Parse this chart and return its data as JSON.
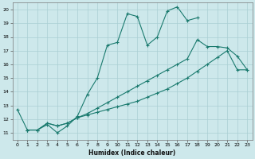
{
  "xlabel": "Humidex (Indice chaleur)",
  "ylabel": "",
  "bg_color": "#cde8eb",
  "line_color": "#1a7a6e",
  "grid_color": "#aacfd4",
  "xlim": [
    -0.5,
    23.5
  ],
  "ylim": [
    10.5,
    20.5
  ],
  "xticks": [
    0,
    1,
    2,
    3,
    4,
    5,
    6,
    7,
    8,
    9,
    10,
    11,
    12,
    13,
    14,
    15,
    16,
    17,
    18,
    19,
    20,
    21,
    22,
    23
  ],
  "yticks": [
    11,
    12,
    13,
    14,
    15,
    16,
    17,
    18,
    19,
    20
  ],
  "line1_x": [
    0,
    1,
    2,
    3,
    4,
    5,
    6,
    7,
    8,
    9,
    10,
    11,
    12,
    13,
    14,
    15,
    16,
    17,
    18
  ],
  "line1_y": [
    12.7,
    11.2,
    11.2,
    11.6,
    11.0,
    11.5,
    12.2,
    13.8,
    15.0,
    17.4,
    17.6,
    19.7,
    19.5,
    17.4,
    18.0,
    19.9,
    20.2,
    19.2,
    19.4
  ],
  "line2_x": [
    1,
    2,
    3,
    4,
    5,
    6,
    7,
    8,
    9,
    10,
    11,
    12,
    13,
    14,
    15,
    16,
    17,
    18,
    19,
    20,
    21,
    22,
    23
  ],
  "line2_y": [
    11.2,
    11.2,
    11.7,
    11.5,
    11.7,
    12.1,
    12.4,
    12.8,
    13.2,
    13.6,
    14.0,
    14.4,
    14.8,
    15.2,
    15.6,
    16.0,
    16.4,
    17.8,
    17.3,
    17.3,
    17.2,
    16.6,
    15.6
  ],
  "line3_x": [
    1,
    2,
    3,
    4,
    5,
    6,
    7,
    8,
    9,
    10,
    11,
    12,
    13,
    14,
    15,
    16,
    17,
    18,
    19,
    20,
    21,
    22,
    23
  ],
  "line3_y": [
    11.2,
    11.2,
    11.7,
    11.5,
    11.7,
    12.1,
    12.3,
    12.5,
    12.7,
    12.9,
    13.1,
    13.3,
    13.6,
    13.9,
    14.2,
    14.6,
    15.0,
    15.5,
    16.0,
    16.5,
    17.0,
    15.6,
    15.6
  ]
}
